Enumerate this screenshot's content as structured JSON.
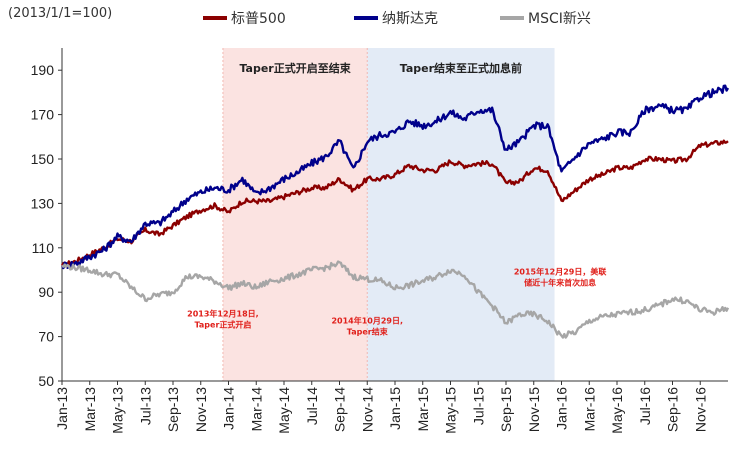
{
  "chart_data": {
    "type": "line",
    "unit_note": "(2013/1/1=100)",
    "ylim": [
      50,
      200
    ],
    "yticks": [
      50,
      70,
      90,
      110,
      130,
      150,
      170,
      190
    ],
    "x_tick_labels": [
      "Jan-13",
      "Mar-13",
      "May-13",
      "Jul-13",
      "Sep-13",
      "Nov-13",
      "Jan-14",
      "Mar-14",
      "May-14",
      "Jul-14",
      "Sep-14",
      "Nov-14",
      "Jan-15",
      "Mar-15",
      "May-15",
      "Jul-15",
      "Sep-15",
      "Nov-15",
      "Jan-16",
      "Mar-16",
      "May-16",
      "Jul-16",
      "Sep-16",
      "Nov-16"
    ],
    "x_range_months": [
      0,
      48
    ],
    "grid": false,
    "legend_position": "top",
    "series": [
      {
        "name": "标普500",
        "color": "#8b0000",
        "points": [
          [
            0,
            102
          ],
          [
            1,
            104
          ],
          [
            2,
            107
          ],
          [
            3,
            110
          ],
          [
            4,
            114
          ],
          [
            5,
            113
          ],
          [
            6,
            118
          ],
          [
            7,
            116
          ],
          [
            8,
            120
          ],
          [
            9,
            124
          ],
          [
            10,
            127
          ],
          [
            11,
            129
          ],
          [
            12,
            126
          ],
          [
            13,
            131
          ],
          [
            14,
            131
          ],
          [
            15,
            131
          ],
          [
            16,
            133
          ],
          [
            17,
            135
          ],
          [
            18,
            137
          ],
          [
            19,
            137
          ],
          [
            20,
            141
          ],
          [
            21,
            136
          ],
          [
            22,
            141
          ],
          [
            23,
            141
          ],
          [
            24,
            143
          ],
          [
            25,
            147
          ],
          [
            26,
            145
          ],
          [
            27,
            145
          ],
          [
            28,
            149
          ],
          [
            29,
            147
          ],
          [
            30,
            148
          ],
          [
            31,
            148
          ],
          [
            32,
            139
          ],
          [
            33,
            140
          ],
          [
            34,
            146
          ],
          [
            35,
            145
          ],
          [
            36,
            131
          ],
          [
            37,
            136
          ],
          [
            38,
            141
          ],
          [
            39,
            143
          ],
          [
            40,
            146
          ],
          [
            41,
            146
          ],
          [
            42,
            150
          ],
          [
            43,
            150
          ],
          [
            44,
            149
          ],
          [
            45,
            150
          ],
          [
            46,
            156
          ],
          [
            47,
            157
          ],
          [
            48,
            158
          ]
        ]
      },
      {
        "name": "纳斯达克",
        "color": "#00008b",
        "points": [
          [
            0,
            102
          ],
          [
            1,
            103
          ],
          [
            2,
            106
          ],
          [
            3,
            109
          ],
          [
            4,
            115
          ],
          [
            5,
            113
          ],
          [
            6,
            121
          ],
          [
            7,
            121
          ],
          [
            8,
            126
          ],
          [
            9,
            132
          ],
          [
            10,
            135
          ],
          [
            11,
            137
          ],
          [
            12,
            136
          ],
          [
            13,
            141
          ],
          [
            14,
            134
          ],
          [
            15,
            137
          ],
          [
            16,
            141
          ],
          [
            17,
            144
          ],
          [
            18,
            148
          ],
          [
            19,
            151
          ],
          [
            20,
            158
          ],
          [
            21,
            145
          ],
          [
            22,
            158
          ],
          [
            23,
            161
          ],
          [
            24,
            162
          ],
          [
            25,
            167
          ],
          [
            26,
            165
          ],
          [
            27,
            167
          ],
          [
            28,
            171
          ],
          [
            29,
            168
          ],
          [
            30,
            172
          ],
          [
            31,
            172
          ],
          [
            32,
            154
          ],
          [
            33,
            158
          ],
          [
            34,
            165
          ],
          [
            35,
            165
          ],
          [
            36,
            144
          ],
          [
            37,
            151
          ],
          [
            38,
            157
          ],
          [
            39,
            159
          ],
          [
            40,
            162
          ],
          [
            41,
            162
          ],
          [
            42,
            172
          ],
          [
            43,
            174
          ],
          [
            44,
            172
          ],
          [
            45,
            172
          ],
          [
            46,
            178
          ],
          [
            47,
            180
          ],
          [
            48,
            182
          ]
        ]
      },
      {
        "name": "MSCI新兴",
        "color": "#a6a6a6",
        "points": [
          [
            0,
            102
          ],
          [
            1,
            101
          ],
          [
            2,
            100
          ],
          [
            3,
            98
          ],
          [
            4,
            98
          ],
          [
            5,
            92
          ],
          [
            6,
            87
          ],
          [
            7,
            89
          ],
          [
            8,
            90
          ],
          [
            9,
            97
          ],
          [
            10,
            97
          ],
          [
            11,
            95
          ],
          [
            12,
            92
          ],
          [
            13,
            94
          ],
          [
            14,
            92
          ],
          [
            15,
            95
          ],
          [
            16,
            96
          ],
          [
            17,
            98
          ],
          [
            18,
            100
          ],
          [
            19,
            101
          ],
          [
            20,
            103
          ],
          [
            21,
            97
          ],
          [
            22,
            96
          ],
          [
            23,
            95
          ],
          [
            24,
            92
          ],
          [
            25,
            93
          ],
          [
            26,
            95
          ],
          [
            27,
            97
          ],
          [
            28,
            100
          ],
          [
            29,
            98
          ],
          [
            30,
            90
          ],
          [
            31,
            84
          ],
          [
            32,
            76
          ],
          [
            33,
            80
          ],
          [
            34,
            80
          ],
          [
            35,
            77
          ],
          [
            36,
            70
          ],
          [
            37,
            72
          ],
          [
            38,
            77
          ],
          [
            39,
            79
          ],
          [
            40,
            80
          ],
          [
            41,
            81
          ],
          [
            42,
            82
          ],
          [
            43,
            84
          ],
          [
            44,
            87
          ],
          [
            45,
            86
          ],
          [
            46,
            82
          ],
          [
            47,
            81
          ],
          [
            48,
            83
          ]
        ]
      }
    ],
    "shaded_regions": [
      {
        "label": "Taper正式开启至结束",
        "from": 11.6,
        "to": 22,
        "color": "#fbe3e1"
      },
      {
        "label": "Taper结束至正式加息前",
        "from": 22,
        "to": 35.5,
        "color": "#e3ebf6"
      }
    ],
    "annotations": [
      {
        "lines": [
          "2013年12月18日,",
          "Taper正式开启"
        ],
        "x": 11.6,
        "y": 79
      },
      {
        "lines": [
          "2014年10月29日,",
          "Taper结束"
        ],
        "x": 22,
        "y": 76
      },
      {
        "lines": [
          "2015年12月29日，美联",
          "储近十年来首次加息"
        ],
        "x": 35.9,
        "y": 98
      }
    ]
  }
}
